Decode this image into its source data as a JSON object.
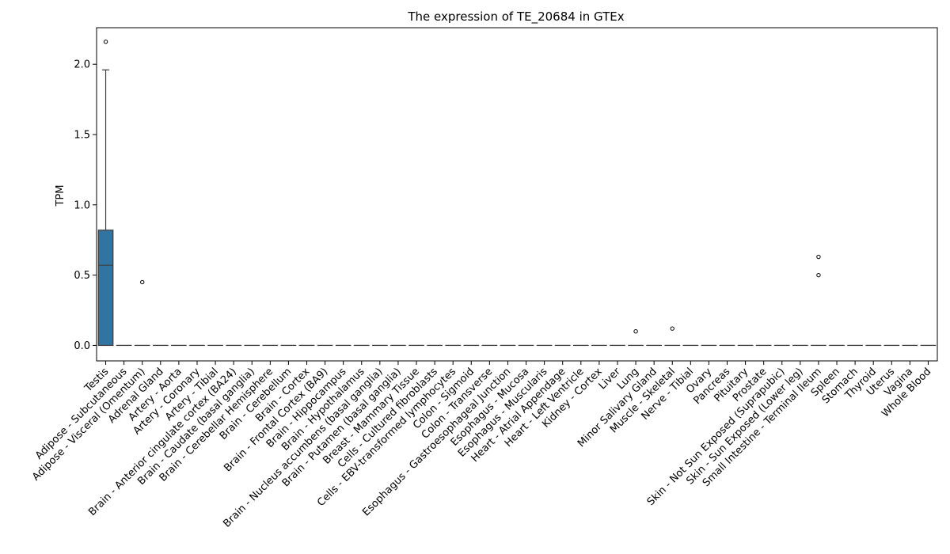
{
  "chart_data": {
    "type": "box",
    "title": "The expression of TE_20684 in GTEx",
    "xlabel": "",
    "ylabel": "TPM",
    "ylim": [
      -0.11,
      2.26
    ],
    "yticks": [
      0.0,
      0.5,
      1.0,
      1.5,
      2.0
    ],
    "ytick_labels": [
      "0.0",
      "0.5",
      "1.0",
      "1.5",
      "2.0"
    ],
    "grid": false,
    "legend": "none",
    "box_color": "#3274a1",
    "line_color": "#3d3d3d",
    "categories": [
      "Testis",
      "Adipose - Subcutaneous",
      "Adipose - Visceral (Omentum)",
      "Adrenal Gland",
      "Artery - Aorta",
      "Artery - Coronary",
      "Artery - Tibial",
      "Brain - Anterior cingulate cortex (BA24)",
      "Brain - Caudate (basal ganglia)",
      "Brain - Cerebellar Hemisphere",
      "Brain - Cerebellum",
      "Brain - Cortex",
      "Brain - Frontal Cortex (BA9)",
      "Brain - Hippocampus",
      "Brain - Hypothalamus",
      "Brain - Nucleus accumbens (basal ganglia)",
      "Brain - Putamen (basal ganglia)",
      "Breast - Mammary Tissue",
      "Cells - Cultured fibroblasts",
      "Cells - EBV-transformed lymphocytes",
      "Colon - Sigmoid",
      "Colon - Transverse",
      "Esophagus - Gastroesophageal Junction",
      "Esophagus - Mucosa",
      "Esophagus - Muscularis",
      "Heart - Atrial Appendage",
      "Heart - Left Ventricle",
      "Kidney - Cortex",
      "Liver",
      "Lung",
      "Minor Salivary Gland",
      "Muscle - Skeletal",
      "Nerve - Tibial",
      "Ovary",
      "Pancreas",
      "Pituitary",
      "Prostate",
      "Skin - Not Sun Exposed (Suprapubic)",
      "Skin - Sun Exposed (Lower leg)",
      "Small Intestine - Terminal Ileum",
      "Spleen",
      "Stomach",
      "Thyroid",
      "Uterus",
      "Vagina",
      "Whole Blood"
    ],
    "boxes": [
      {
        "q1": 0.0,
        "median": 0.57,
        "q3": 0.82,
        "whisker_low": 0.0,
        "whisker_high": 1.96,
        "outliers": [
          2.16
        ]
      },
      {
        "q1": 0.0,
        "median": 0.0,
        "q3": 0.0,
        "whisker_low": 0.0,
        "whisker_high": 0.0,
        "outliers": []
      },
      {
        "q1": 0.0,
        "median": 0.0,
        "q3": 0.0,
        "whisker_low": 0.0,
        "whisker_high": 0.0,
        "outliers": [
          0.45
        ]
      },
      {
        "q1": 0.0,
        "median": 0.0,
        "q3": 0.0,
        "whisker_low": 0.0,
        "whisker_high": 0.0,
        "outliers": []
      },
      {
        "q1": 0.0,
        "median": 0.0,
        "q3": 0.0,
        "whisker_low": 0.0,
        "whisker_high": 0.0,
        "outliers": []
      },
      {
        "q1": 0.0,
        "median": 0.0,
        "q3": 0.0,
        "whisker_low": 0.0,
        "whisker_high": 0.0,
        "outliers": []
      },
      {
        "q1": 0.0,
        "median": 0.0,
        "q3": 0.0,
        "whisker_low": 0.0,
        "whisker_high": 0.0,
        "outliers": []
      },
      {
        "q1": 0.0,
        "median": 0.0,
        "q3": 0.0,
        "whisker_low": 0.0,
        "whisker_high": 0.0,
        "outliers": []
      },
      {
        "q1": 0.0,
        "median": 0.0,
        "q3": 0.0,
        "whisker_low": 0.0,
        "whisker_high": 0.0,
        "outliers": []
      },
      {
        "q1": 0.0,
        "median": 0.0,
        "q3": 0.0,
        "whisker_low": 0.0,
        "whisker_high": 0.0,
        "outliers": []
      },
      {
        "q1": 0.0,
        "median": 0.0,
        "q3": 0.0,
        "whisker_low": 0.0,
        "whisker_high": 0.0,
        "outliers": []
      },
      {
        "q1": 0.0,
        "median": 0.0,
        "q3": 0.0,
        "whisker_low": 0.0,
        "whisker_high": 0.0,
        "outliers": []
      },
      {
        "q1": 0.0,
        "median": 0.0,
        "q3": 0.0,
        "whisker_low": 0.0,
        "whisker_high": 0.0,
        "outliers": []
      },
      {
        "q1": 0.0,
        "median": 0.0,
        "q3": 0.0,
        "whisker_low": 0.0,
        "whisker_high": 0.0,
        "outliers": []
      },
      {
        "q1": 0.0,
        "median": 0.0,
        "q3": 0.0,
        "whisker_low": 0.0,
        "whisker_high": 0.0,
        "outliers": []
      },
      {
        "q1": 0.0,
        "median": 0.0,
        "q3": 0.0,
        "whisker_low": 0.0,
        "whisker_high": 0.0,
        "outliers": []
      },
      {
        "q1": 0.0,
        "median": 0.0,
        "q3": 0.0,
        "whisker_low": 0.0,
        "whisker_high": 0.0,
        "outliers": []
      },
      {
        "q1": 0.0,
        "median": 0.0,
        "q3": 0.0,
        "whisker_low": 0.0,
        "whisker_high": 0.0,
        "outliers": []
      },
      {
        "q1": 0.0,
        "median": 0.0,
        "q3": 0.0,
        "whisker_low": 0.0,
        "whisker_high": 0.0,
        "outliers": []
      },
      {
        "q1": 0.0,
        "median": 0.0,
        "q3": 0.0,
        "whisker_low": 0.0,
        "whisker_high": 0.0,
        "outliers": []
      },
      {
        "q1": 0.0,
        "median": 0.0,
        "q3": 0.0,
        "whisker_low": 0.0,
        "whisker_high": 0.0,
        "outliers": []
      },
      {
        "q1": 0.0,
        "median": 0.0,
        "q3": 0.0,
        "whisker_low": 0.0,
        "whisker_high": 0.0,
        "outliers": []
      },
      {
        "q1": 0.0,
        "median": 0.0,
        "q3": 0.0,
        "whisker_low": 0.0,
        "whisker_high": 0.0,
        "outliers": []
      },
      {
        "q1": 0.0,
        "median": 0.0,
        "q3": 0.0,
        "whisker_low": 0.0,
        "whisker_high": 0.0,
        "outliers": []
      },
      {
        "q1": 0.0,
        "median": 0.0,
        "q3": 0.0,
        "whisker_low": 0.0,
        "whisker_high": 0.0,
        "outliers": []
      },
      {
        "q1": 0.0,
        "median": 0.0,
        "q3": 0.0,
        "whisker_low": 0.0,
        "whisker_high": 0.0,
        "outliers": []
      },
      {
        "q1": 0.0,
        "median": 0.0,
        "q3": 0.0,
        "whisker_low": 0.0,
        "whisker_high": 0.0,
        "outliers": []
      },
      {
        "q1": 0.0,
        "median": 0.0,
        "q3": 0.0,
        "whisker_low": 0.0,
        "whisker_high": 0.0,
        "outliers": []
      },
      {
        "q1": 0.0,
        "median": 0.0,
        "q3": 0.0,
        "whisker_low": 0.0,
        "whisker_high": 0.0,
        "outliers": []
      },
      {
        "q1": 0.0,
        "median": 0.0,
        "q3": 0.0,
        "whisker_low": 0.0,
        "whisker_high": 0.0,
        "outliers": [
          0.1
        ]
      },
      {
        "q1": 0.0,
        "median": 0.0,
        "q3": 0.0,
        "whisker_low": 0.0,
        "whisker_high": 0.0,
        "outliers": []
      },
      {
        "q1": 0.0,
        "median": 0.0,
        "q3": 0.0,
        "whisker_low": 0.0,
        "whisker_high": 0.0,
        "outliers": [
          0.12
        ]
      },
      {
        "q1": 0.0,
        "median": 0.0,
        "q3": 0.0,
        "whisker_low": 0.0,
        "whisker_high": 0.0,
        "outliers": []
      },
      {
        "q1": 0.0,
        "median": 0.0,
        "q3": 0.0,
        "whisker_low": 0.0,
        "whisker_high": 0.0,
        "outliers": []
      },
      {
        "q1": 0.0,
        "median": 0.0,
        "q3": 0.0,
        "whisker_low": 0.0,
        "whisker_high": 0.0,
        "outliers": []
      },
      {
        "q1": 0.0,
        "median": 0.0,
        "q3": 0.0,
        "whisker_low": 0.0,
        "whisker_high": 0.0,
        "outliers": []
      },
      {
        "q1": 0.0,
        "median": 0.0,
        "q3": 0.0,
        "whisker_low": 0.0,
        "whisker_high": 0.0,
        "outliers": []
      },
      {
        "q1": 0.0,
        "median": 0.0,
        "q3": 0.0,
        "whisker_low": 0.0,
        "whisker_high": 0.0,
        "outliers": []
      },
      {
        "q1": 0.0,
        "median": 0.0,
        "q3": 0.0,
        "whisker_low": 0.0,
        "whisker_high": 0.0,
        "outliers": []
      },
      {
        "q1": 0.0,
        "median": 0.0,
        "q3": 0.0,
        "whisker_low": 0.0,
        "whisker_high": 0.0,
        "outliers": [
          0.5,
          0.63
        ]
      },
      {
        "q1": 0.0,
        "median": 0.0,
        "q3": 0.0,
        "whisker_low": 0.0,
        "whisker_high": 0.0,
        "outliers": []
      },
      {
        "q1": 0.0,
        "median": 0.0,
        "q3": 0.0,
        "whisker_low": 0.0,
        "whisker_high": 0.0,
        "outliers": []
      },
      {
        "q1": 0.0,
        "median": 0.0,
        "q3": 0.0,
        "whisker_low": 0.0,
        "whisker_high": 0.0,
        "outliers": []
      },
      {
        "q1": 0.0,
        "median": 0.0,
        "q3": 0.0,
        "whisker_low": 0.0,
        "whisker_high": 0.0,
        "outliers": []
      },
      {
        "q1": 0.0,
        "median": 0.0,
        "q3": 0.0,
        "whisker_low": 0.0,
        "whisker_high": 0.0,
        "outliers": []
      },
      {
        "q1": 0.0,
        "median": 0.0,
        "q3": 0.0,
        "whisker_low": 0.0,
        "whisker_high": 0.0,
        "outliers": []
      }
    ]
  }
}
